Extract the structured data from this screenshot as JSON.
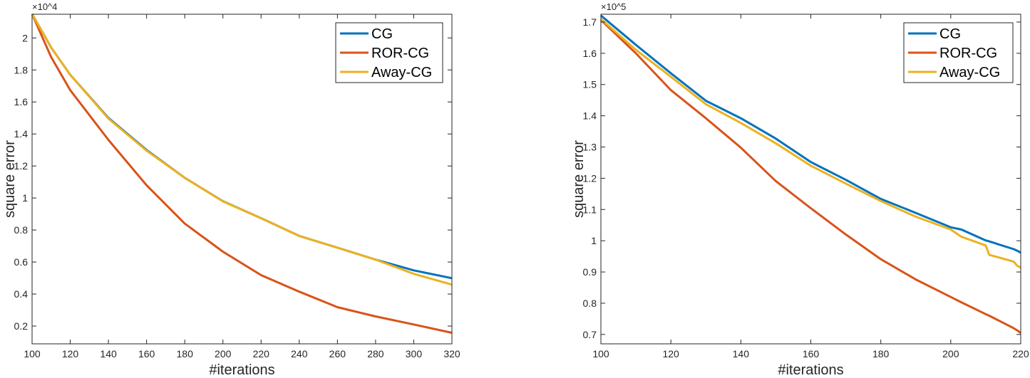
{
  "chart_data": [
    {
      "type": "line",
      "title": "",
      "xlabel": "#iterations",
      "ylabel": "square error",
      "y_exponent_label": "×10^4",
      "y_exponent": "4",
      "xlim": [
        100,
        320
      ],
      "ylim": [
        0.089,
        2.148
      ],
      "xticks": [
        100,
        120,
        140,
        160,
        180,
        200,
        220,
        240,
        260,
        280,
        300,
        320
      ],
      "xtick_labels": [
        "100",
        "120",
        "140",
        "160",
        "180",
        "200",
        "220",
        "240",
        "260",
        "280",
        "300",
        "320"
      ],
      "yticks": [
        0.2,
        0.4,
        0.6,
        0.8,
        1.0,
        1.2,
        1.4,
        1.6,
        1.8,
        2.0
      ],
      "ytick_labels": [
        "0.2",
        "0.4",
        "0.6",
        "0.8",
        "1",
        "1.2",
        "1.4",
        "1.6",
        "1.8",
        "2"
      ],
      "legend_position": "top-right",
      "x": [
        100,
        110,
        120,
        140,
        160,
        180,
        200,
        220,
        240,
        260,
        280,
        300,
        320
      ],
      "series": [
        {
          "name": "CG",
          "color": "#0072BD",
          "values": [
            2.15,
            1.94,
            1.77,
            1.5,
            1.3,
            1.126,
            0.98,
            0.874,
            0.763,
            0.69,
            0.615,
            0.548,
            0.499
          ]
        },
        {
          "name": "ROR-CG",
          "color": "#D95319",
          "values": [
            2.15,
            1.88,
            1.674,
            1.363,
            1.08,
            0.84,
            0.665,
            0.518,
            0.415,
            0.318,
            0.26,
            0.21,
            0.158
          ]
        },
        {
          "name": "Away-CG",
          "color": "#EDB120",
          "values": [
            2.15,
            1.94,
            1.77,
            1.496,
            1.296,
            1.126,
            0.979,
            0.874,
            0.763,
            0.69,
            0.615,
            0.526,
            0.459
          ]
        }
      ]
    },
    {
      "type": "line",
      "title": "",
      "xlabel": "#iterations",
      "ylabel": "square error",
      "y_exponent_label": "×10^5",
      "y_exponent": "5",
      "xlim": [
        100,
        220
      ],
      "ylim": [
        0.67,
        1.725
      ],
      "xticks": [
        100,
        120,
        140,
        160,
        180,
        200,
        220
      ],
      "xtick_labels": [
        "100",
        "120",
        "140",
        "160",
        "180",
        "200",
        "220"
      ],
      "yticks": [
        0.7,
        0.8,
        0.9,
        1.0,
        1.1,
        1.2,
        1.3,
        1.4,
        1.5,
        1.6,
        1.7
      ],
      "ytick_labels": [
        "0.7",
        "0.8",
        "0.9",
        "1",
        "1.1",
        "1.2",
        "1.3",
        "1.4",
        "1.5",
        "1.6",
        "1.7"
      ],
      "legend_position": "top-right",
      "x": [
        100,
        110,
        120,
        130,
        140,
        150,
        160,
        170,
        180,
        190,
        200,
        203,
        210,
        211,
        218,
        219,
        220
      ],
      "series": [
        {
          "name": "CG",
          "color": "#0072BD",
          "values": [
            1.721,
            1.627,
            1.536,
            1.448,
            1.392,
            1.327,
            1.252,
            1.195,
            1.134,
            1.089,
            1.043,
            1.036,
            1.001,
            0.998,
            0.973,
            0.968,
            0.962
          ]
        },
        {
          "name": "ROR-CG",
          "color": "#D95319",
          "values": [
            1.707,
            1.6,
            1.482,
            1.392,
            1.298,
            1.191,
            1.104,
            1.02,
            0.941,
            0.876,
            0.82,
            0.803,
            0.765,
            0.76,
            0.72,
            0.713,
            0.705
          ]
        },
        {
          "name": "Away-CG",
          "color": "#EDB120",
          "values": [
            1.71,
            1.611,
            1.525,
            1.437,
            1.377,
            1.312,
            1.24,
            1.183,
            1.127,
            1.077,
            1.036,
            1.013,
            0.985,
            0.955,
            0.933,
            0.92,
            0.914
          ]
        }
      ]
    }
  ]
}
